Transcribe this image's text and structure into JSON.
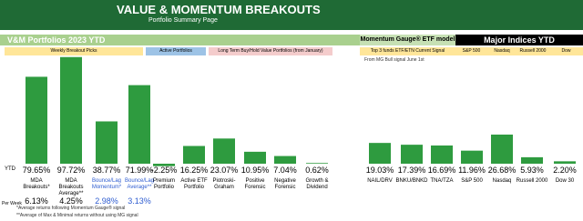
{
  "header": {
    "title": "VALUE & MOMENTUM BREAKOUTS",
    "subtitle": "Portfolio Summary Page"
  },
  "bands": {
    "portfolios": "V&M Portfolios 2023 YTD",
    "momentum": "Momentum Gauge® ETF model",
    "indices": "Major Indices YTD"
  },
  "sections": {
    "weekly": "Weekly Breakout Picks",
    "active": "Active Portfolios",
    "long_term": "Long Term Buy/Hold Value Portfolios (from January)",
    "top3": "Top 3 funds ETF/ETN Current Signal",
    "sp": "S&P 500",
    "nasdaq": "Nasdaq",
    "russell": "Russell 2000",
    "dow": "Dow"
  },
  "note": "From MG Bull signal June 1st",
  "chart_data": {
    "type": "bar",
    "color": "#2e9b3f",
    "row_label": "YTD",
    "categories": [
      "MDA Breakouts*",
      "MDA Breakouts Average**",
      "Bounce/Lag Momentum*",
      "Bounce/Lag Average**",
      "Premium Portfolio",
      "Active ETF Portfolio",
      "Piotroski-Graham",
      "Positive Forensic",
      "Negative Forensic",
      "Growth & Dividend",
      "NAIL/DRV",
      "BNKU/BNKD",
      "TNA/TZA",
      "S&P 500",
      "Nasdaq",
      "Russell 2000",
      "Dow 30"
    ],
    "values": [
      79.65,
      97.72,
      38.77,
      71.99,
      -2.25,
      16.25,
      23.07,
      10.95,
      7.04,
      0.62,
      19.03,
      17.39,
      16.69,
      11.96,
      26.68,
      5.93,
      2.2
    ],
    "value_labels": [
      "79.65%",
      "97.72%",
      "38.77%",
      "71.99%",
      "-2.25%",
      "16.25%",
      "23.07%",
      "10.95%",
      "7.04%",
      "0.62%",
      "19.03%",
      "17.39%",
      "16.69%",
      "11.96%",
      "26.68%",
      "5.93%",
      "2.20%"
    ]
  },
  "per_week": {
    "label": "Per Week",
    "values": [
      "6.13%",
      "4.25%",
      "2.98%",
      "3.13%"
    ]
  },
  "footnotes": [
    "*Average returns following Momentum Gauge® signal",
    "**Average of Max & Minimal returns without using MG signal"
  ]
}
